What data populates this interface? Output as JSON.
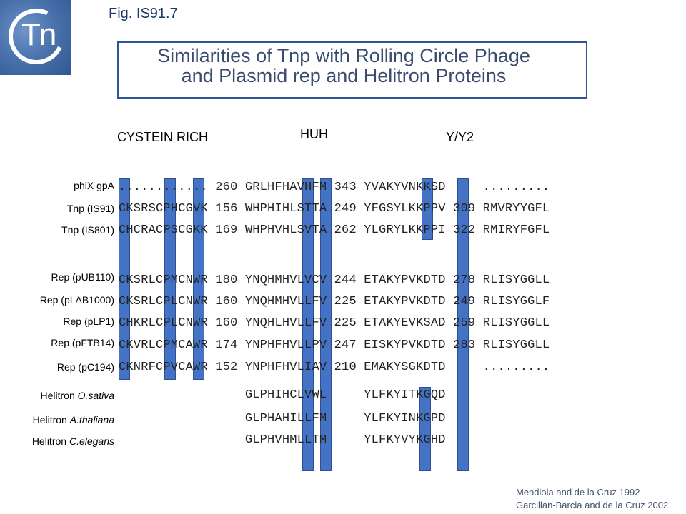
{
  "logo": {
    "text": "Tn"
  },
  "fig_label": "Fig. IS91.7",
  "title": {
    "line1": "Similarities of Tnp with Rolling Circle Phage",
    "line2": "and Plasmid rep and Helitron Proteins"
  },
  "sections": {
    "cys": "CYSTEIN RICH",
    "huh": "HUH",
    "yy2": "Y/Y2"
  },
  "rows": [
    {
      "label": "phiX gpA",
      "seq": "............ 260 GRLHFHAVHFM 343 YVAKYVNKKSD     ........."
    },
    {
      "label": "Tnp (IS91)",
      "seq": "CKSRSCPHCGVK 156 WHPHIHLSTTA 249 YFGSYLKKPPV 309 RMVRYYGFL"
    },
    {
      "label": "Tnp (IS801)",
      "seq": "CHCRACPSCGKK 169 WHPHVHLSVTA 262 YLGRYLKKPPI 322 RMIRYFGFL"
    },
    {
      "label": "Rep (pUB110)",
      "seq": "CKSRLCPMCNWR 180 YNQHMHVLVCV 244 ETAKYPVKDTD 278 RLISYGGLL"
    },
    {
      "label": "Rep (pLAB1000)",
      "seq": "CKSRLCPLCNWR 160 YNQHMHVLLFV 225 ETAKYPVKDTD 249 RLISYGGLF"
    },
    {
      "label": "Rep (pLP1)",
      "seq": "CHKRLCPLCNWR 160 YNQHLHVLLFV 225 ETAKYEVKSAD 259 RLISYGGLL"
    },
    {
      "label": "Rep (pFTB14)",
      "seq": "CKVRLCPMCAWR 174 YNPHFHVLLPV 247 EISKYPVKDTD 283 RLISYGGLL"
    },
    {
      "label": "Rep (pC194)",
      "seq": "CKNRFCPVCAWR 152 YNPHFHVLIAV 210 EMAKYSGKDTD     ........."
    },
    {
      "label_prefix": "Helitron ",
      "label_species": "O.sativa",
      "seq": "                 GLPHIHCLVWL     YLFKYITKGQD"
    },
    {
      "label_prefix": "Helitron ",
      "label_species": "A.thaliana",
      "seq": "                 GLPHAHILLFM     YLFKYINKGPD"
    },
    {
      "label_prefix": "Helitron ",
      "label_species": "C.elegans",
      "seq": "                 GLPHVHMLLTM     YLFKYVYKGHD"
    }
  ],
  "references": [
    "Mendiola and de la Cruz 1992",
    "Garcillan-Barcia and de la Cruz 2002"
  ],
  "colors": {
    "highlight": "#4472c4",
    "title_border": "#2f5597",
    "title_text": "#3a4b6e"
  }
}
